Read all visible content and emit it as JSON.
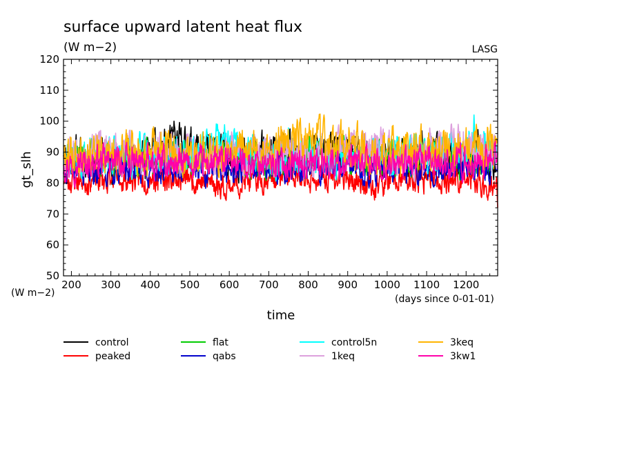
{
  "chart_data": {
    "type": "line",
    "title": "surface upward latent heat flux",
    "units": "(W m−2)",
    "source_label": "LASG",
    "ylabel": "gt_slh",
    "y_units_label": "(W m−2)",
    "xlabel": "time",
    "x_units_label": "(days since 0-01-01)",
    "xlim": [
      180,
      1280
    ],
    "ylim": [
      50,
      120
    ],
    "x_ticks": [
      200,
      300,
      400,
      500,
      600,
      700,
      800,
      900,
      1000,
      1100,
      1200
    ],
    "y_ticks": [
      50,
      60,
      70,
      80,
      90,
      100,
      110,
      120
    ],
    "grid": false,
    "legend_position": "bottom",
    "series": [
      {
        "name": "control",
        "color": "#000000",
        "mean": 88.5,
        "amp": 4.5,
        "seed": 11,
        "x": [
          180,
          300,
          400,
          460,
          600,
          700,
          800,
          900,
          1000,
          1100,
          1200,
          1280
        ],
        "values": [
          89,
          88,
          90,
          100,
          88,
          90,
          89,
          94,
          88,
          90,
          87,
          88
        ]
      },
      {
        "name": "peaked",
        "color": "#ff0000",
        "mean": 81.5,
        "amp": 3.0,
        "seed": 23,
        "x": [
          180,
          300,
          400,
          500,
          590,
          700,
          800,
          900,
          960,
          1100,
          1200,
          1280
        ],
        "values": [
          80,
          80,
          82,
          81,
          75,
          82,
          81,
          82,
          76,
          81,
          80,
          72
        ]
      },
      {
        "name": "flat",
        "color": "#00cc00",
        "mean": 88.0,
        "amp": 3.8,
        "seed": 37,
        "x": [
          180,
          300,
          400,
          500,
          600,
          700,
          800,
          900,
          1000,
          1100,
          1200,
          1280
        ],
        "values": [
          90,
          88,
          87,
          88,
          89,
          87,
          88,
          89,
          88,
          87,
          88,
          86
        ]
      },
      {
        "name": "qabs",
        "color": "#0000cc",
        "mean": 85.0,
        "amp": 3.5,
        "seed": 41,
        "x": [
          180,
          300,
          400,
          500,
          600,
          700,
          800,
          900,
          1000,
          1100,
          1200,
          1280
        ],
        "values": [
          83,
          85,
          84,
          86,
          85,
          84,
          85,
          86,
          84,
          85,
          85,
          84
        ]
      },
      {
        "name": "control5n",
        "color": "#00ffff",
        "mean": 89.0,
        "amp": 4.5,
        "seed": 53,
        "x": [
          180,
          300,
          400,
          500,
          570,
          700,
          800,
          900,
          1000,
          1100,
          1220,
          1280
        ],
        "values": [
          90,
          89,
          88,
          90,
          99,
          89,
          90,
          88,
          89,
          90,
          102,
          89
        ]
      },
      {
        "name": "1keq",
        "color": "#dda0dd",
        "mean": 89.5,
        "amp": 4.5,
        "seed": 67,
        "x": [
          180,
          300,
          400,
          500,
          600,
          700,
          800,
          900,
          1000,
          1100,
          1180,
          1280
        ],
        "values": [
          90,
          91,
          89,
          90,
          91,
          90,
          89,
          91,
          90,
          92,
          99,
          92
        ]
      },
      {
        "name": "3keq",
        "color": "#ffb400",
        "mean": 90.0,
        "amp": 5.0,
        "seed": 79,
        "x": [
          180,
          300,
          400,
          500,
          600,
          700,
          780,
          840,
          900,
          1000,
          1100,
          1280
        ],
        "values": [
          88,
          90,
          91,
          89,
          90,
          91,
          101,
          102,
          90,
          91,
          90,
          93
        ]
      },
      {
        "name": "3kw1",
        "color": "#ff00aa",
        "mean": 86.5,
        "amp": 3.5,
        "seed": 97,
        "x": [
          180,
          300,
          400,
          500,
          600,
          700,
          800,
          900,
          1000,
          1100,
          1200,
          1280
        ],
        "values": [
          86,
          87,
          86,
          85,
          87,
          86,
          87,
          86,
          85,
          87,
          86,
          90
        ]
      }
    ]
  }
}
